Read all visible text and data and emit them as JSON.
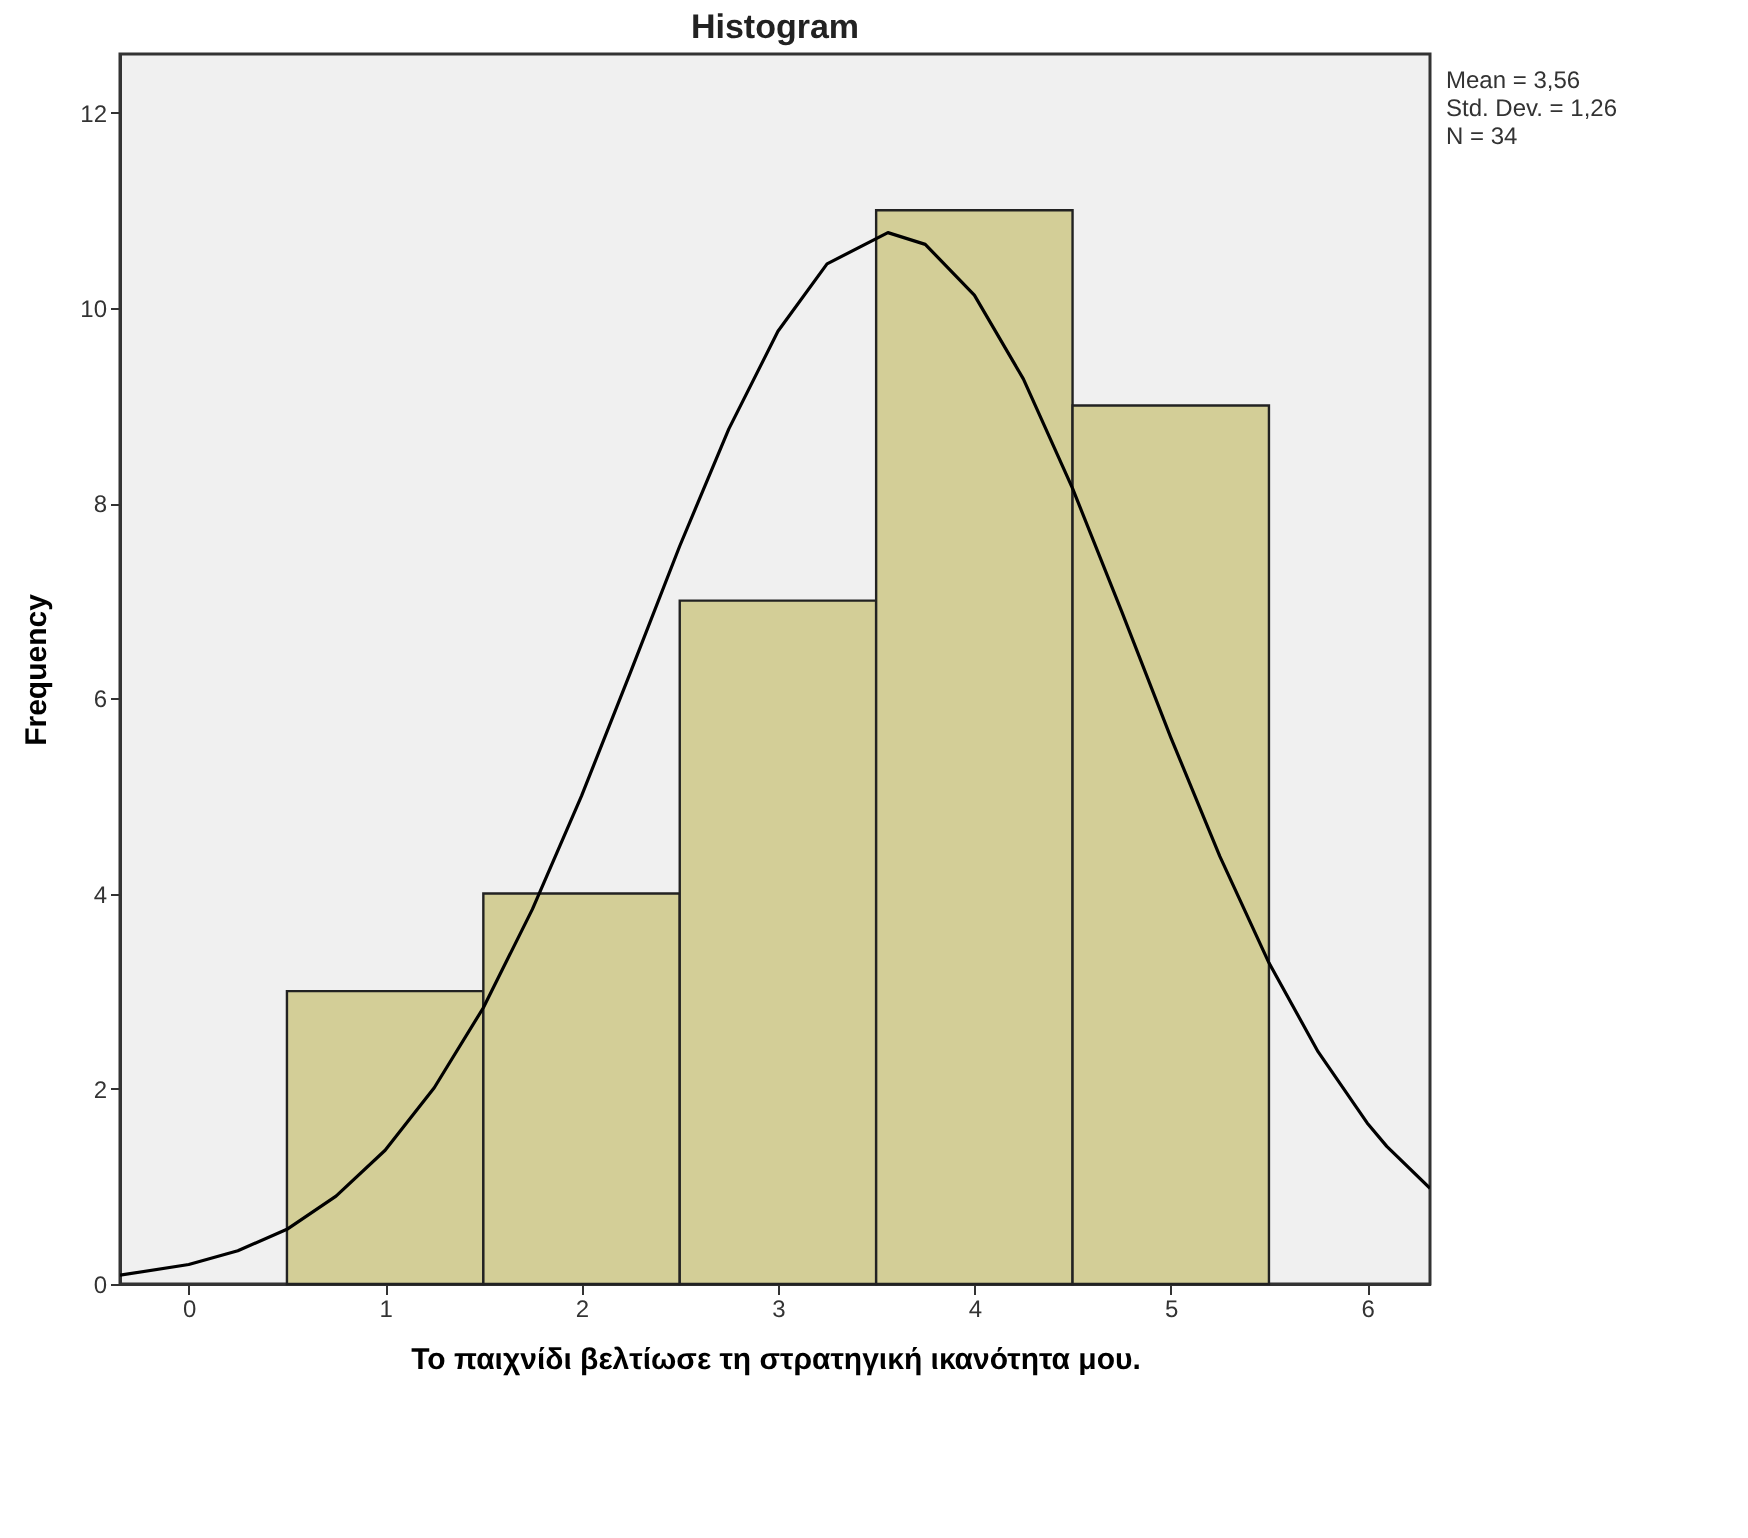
{
  "chart_data": {
    "type": "histogram",
    "title": "Histogram",
    "xlabel": "Το παιχνίδι βελτίωσε τη στρατηγική ικανότητα μου.",
    "ylabel": "Frequency",
    "bins": [
      0.5,
      1.5,
      2.5,
      3.5,
      4.5,
      5.5
    ],
    "values": [
      3,
      4,
      7,
      11,
      9
    ],
    "color": "#d3ce97",
    "series": [
      {
        "type": "line",
        "color": "#000000",
        "x": [
          -0.35,
          0,
          0.25,
          0.5,
          0.75,
          1,
          1.25,
          1.5,
          1.75,
          2,
          2.25,
          2.5,
          2.75,
          3,
          3.25,
          3.56,
          3.75,
          4,
          4.25,
          4.5,
          4.75,
          5,
          5.25,
          5.5,
          5.75,
          6,
          6.1,
          6.32
        ],
        "values": [
          0.09,
          0.2,
          0.34,
          0.56,
          0.9,
          1.37,
          2.01,
          2.83,
          3.84,
          5.0,
          6.27,
          7.56,
          8.76,
          9.76,
          10.45,
          10.77,
          10.65,
          10.13,
          9.27,
          8.15,
          6.89,
          5.6,
          4.38,
          3.29,
          2.38,
          1.65,
          1.41,
          0.98
        ]
      }
    ],
    "xlim": [
      -0.35,
      6.32
    ],
    "ylim": [
      0,
      12.6
    ],
    "xticks": [
      0,
      1,
      2,
      3,
      4,
      5,
      6
    ],
    "yticks": [
      0,
      2,
      4,
      6,
      8,
      10,
      12
    ],
    "grid": false,
    "marker": "none",
    "line_style": "solid",
    "annotations": [
      "Mean = 3,56",
      "Std. Dev. = 1,26",
      "N = 34"
    ]
  }
}
